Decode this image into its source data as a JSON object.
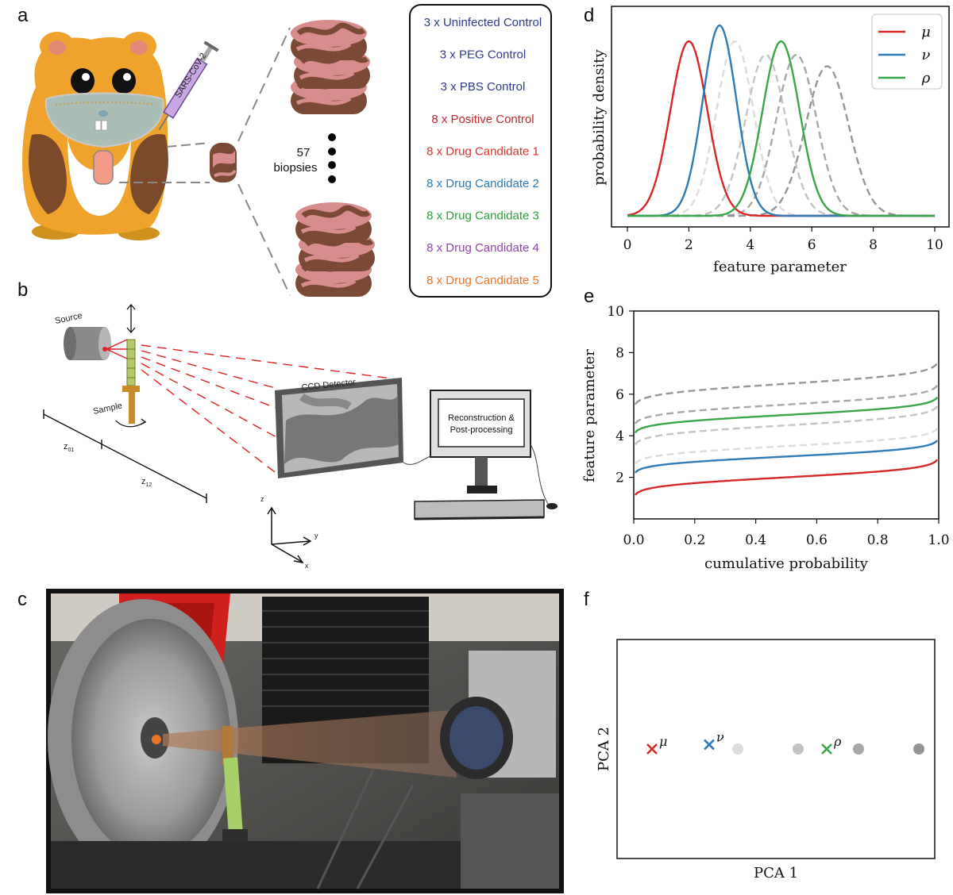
{
  "panel_labels": {
    "a": "a",
    "b": "b",
    "c": "c",
    "d": "d",
    "e": "e",
    "f": "f"
  },
  "panel_a": {
    "syringe_label": "SARS-CoV-2",
    "biopsy_count": "57",
    "biopsy_word": "biopsies",
    "groups": [
      {
        "text": "3 x Uninfected Control",
        "color": "#2e3a8c"
      },
      {
        "text": "3 x PEG Control",
        "color": "#2e3a8c"
      },
      {
        "text": "3 x PBS Control",
        "color": "#2e3a8c"
      },
      {
        "text": "8 x Positive Control",
        "color": "#c0282d"
      },
      {
        "text": "8 x Drug Candidate 1",
        "color": "#d7312c"
      },
      {
        "text": "8 x Drug Candidate 2",
        "color": "#2b7bb9"
      },
      {
        "text": "8 x Drug Candidate 3",
        "color": "#2e9e3e"
      },
      {
        "text": "8 x Drug Candidate 4",
        "color": "#8e44ad"
      },
      {
        "text": "8 x Drug Candidate 5",
        "color": "#e8742a"
      }
    ]
  },
  "panel_b": {
    "source": "Source",
    "sample": "Sample",
    "detector": "CCD Detector",
    "computer_line1": "Reconstruction &",
    "computer_line2": "Post-processing",
    "z01": "z",
    "z01_sub": "01",
    "z12": "z",
    "z12_sub": "12",
    "axis_z": "z",
    "axis_y": "y",
    "axis_x": "x"
  },
  "colors": {
    "mu": "#d62728",
    "nu": "#2e7bb8",
    "rho": "#3aa64a"
  },
  "chart_data": [
    {
      "type": "line",
      "panel": "d",
      "xlabel": "feature parameter",
      "ylabel": "probability density",
      "xlim": [
        0,
        10
      ],
      "xticks": [
        "0",
        "2",
        "4",
        "6",
        "8",
        "10"
      ],
      "grid": false,
      "legend_position": "top-right",
      "series": [
        {
          "name": "μ",
          "kind": "solid",
          "color": "#d62728",
          "mean": 2.0,
          "sd": 0.6
        },
        {
          "name": "ν",
          "kind": "solid",
          "color": "#2e7bb8",
          "mean": 3.0,
          "sd": 0.55
        },
        {
          "name": "ρ",
          "kind": "solid",
          "color": "#3aa64a",
          "mean": 5.0,
          "sd": 0.6
        },
        {
          "kind": "dashed",
          "color": "#dcdcdc",
          "mean": 3.5,
          "sd": 0.6
        },
        {
          "kind": "dashed",
          "color": "#c4c4c4",
          "mean": 4.5,
          "sd": 0.65
        },
        {
          "kind": "dashed",
          "color": "#a8a8a8",
          "mean": 5.5,
          "sd": 0.65
        },
        {
          "kind": "dashed",
          "color": "#969696",
          "mean": 6.5,
          "sd": 0.7
        }
      ]
    },
    {
      "type": "line",
      "panel": "e",
      "xlabel": "cumulative probability",
      "ylabel": "feature parameter",
      "xlim": [
        0,
        1
      ],
      "ylim": [
        0,
        10
      ],
      "xticks": [
        "0.0",
        "0.2",
        "0.4",
        "0.6",
        "0.8",
        "1.0"
      ],
      "yticks": [
        "2",
        "4",
        "6",
        "8",
        "10"
      ],
      "grid": false
    },
    {
      "type": "scatter",
      "panel": "f",
      "xlabel": "PCA 1",
      "ylabel": "PCA 2",
      "points": [
        {
          "label": "μ",
          "marker": "x",
          "color": "#d62728",
          "x": 0.11,
          "y": 0.5
        },
        {
          "label": "ν",
          "marker": "x",
          "color": "#2e7bb8",
          "x": 0.29,
          "y": 0.52
        },
        {
          "marker": "o",
          "color": "#dcdcdc",
          "x": 0.38,
          "y": 0.5
        },
        {
          "marker": "o",
          "color": "#c4c4c4",
          "x": 0.57,
          "y": 0.5
        },
        {
          "label": "ρ",
          "marker": "x",
          "color": "#3aa64a",
          "x": 0.66,
          "y": 0.5
        },
        {
          "marker": "o",
          "color": "#a8a8a8",
          "x": 0.76,
          "y": 0.5
        },
        {
          "marker": "o",
          "color": "#969696",
          "x": 0.95,
          "y": 0.5
        }
      ]
    }
  ]
}
